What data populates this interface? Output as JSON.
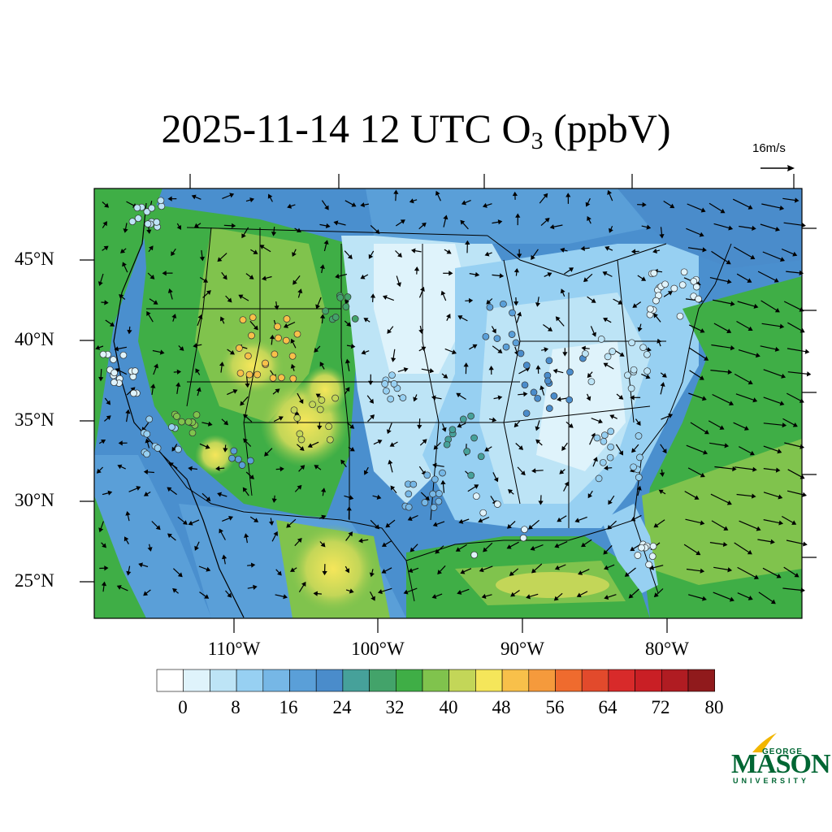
{
  "title": {
    "main": "2025-11-14 12 UTC O",
    "subscript": "3",
    "units": " (ppbV)"
  },
  "reference_vector": {
    "label": "16m/s"
  },
  "map": {
    "lat_labels": [
      "45°N",
      "40°N",
      "35°N",
      "30°N",
      "25°N"
    ],
    "lat_values": [
      45,
      40,
      35,
      30,
      25
    ],
    "lon_labels": [
      "110°W",
      "100°W",
      "90°W",
      "80°W"
    ],
    "lon_values": [
      -110,
      -100,
      -90,
      -80
    ],
    "field_colors": {
      "background": "#4a8fce",
      "land_low": "#c8e6f7",
      "land_mid": "#7fc0e8",
      "land_high": "#3daa44",
      "ocean": "#4fae4a"
    }
  },
  "colorbar": {
    "labels": [
      "0",
      "8",
      "16",
      "24",
      "32",
      "40",
      "48",
      "56",
      "64",
      "72",
      "80"
    ],
    "colors": [
      "#ffffff",
      "#dff3fb",
      "#bde4f6",
      "#97d0f2",
      "#76b7e6",
      "#5a9fd8",
      "#4a8ccb",
      "#46a19a",
      "#43a36a",
      "#3fae46",
      "#80c34d",
      "#c3d658",
      "#f5e65a",
      "#f8c04a",
      "#f59a3c",
      "#ef6b2e",
      "#e24a2c",
      "#d82a2a",
      "#c91f25",
      "#b01c22",
      "#901a1c"
    ]
  },
  "logo": {
    "line1": "GEORGE",
    "line2": "MASON",
    "line3": "UNIVERSITY"
  }
}
